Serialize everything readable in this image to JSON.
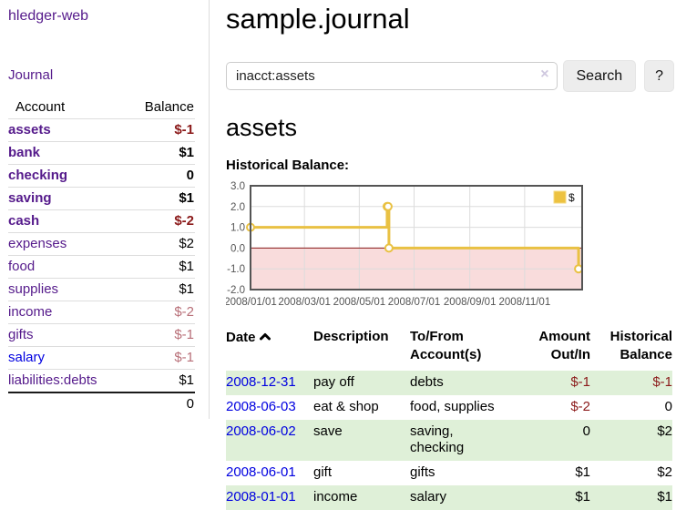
{
  "sidebar": {
    "app_title": "hledger-web",
    "nav": {
      "journal_label": "Journal"
    },
    "accounts_table": {
      "headers": {
        "account": "Account",
        "balance": "Balance"
      },
      "rows": [
        {
          "label": "assets",
          "indent": 1,
          "bold": true,
          "balance": "$-1",
          "balance_style": "neg",
          "link_color": "purple"
        },
        {
          "label": "bank",
          "indent": 2,
          "bold": true,
          "balance": "$1",
          "balance_style": "normal",
          "link_color": "purple"
        },
        {
          "label": "checking",
          "indent": 3,
          "bold": true,
          "balance": "0",
          "balance_style": "normal",
          "link_color": "purple"
        },
        {
          "label": "saving",
          "indent": 3,
          "bold": true,
          "balance": "$1",
          "balance_style": "normal",
          "link_color": "purple"
        },
        {
          "label": "cash",
          "indent": 2,
          "bold": true,
          "balance": "$-2",
          "balance_style": "neg",
          "link_color": "purple"
        },
        {
          "label": "expenses",
          "indent": 1,
          "bold": false,
          "balance": "$2",
          "balance_style": "normal",
          "link_color": "purple"
        },
        {
          "label": "food",
          "indent": 2,
          "bold": false,
          "balance": "$1",
          "balance_style": "normal",
          "link_color": "purple"
        },
        {
          "label": "supplies",
          "indent": 2,
          "bold": false,
          "balance": "$1",
          "balance_style": "normal",
          "link_color": "purple"
        },
        {
          "label": "income",
          "indent": 1,
          "bold": false,
          "balance": "$-2",
          "balance_style": "negmuted",
          "link_color": "purple"
        },
        {
          "label": "gifts",
          "indent": 2,
          "bold": false,
          "balance": "$-1",
          "balance_style": "negmuted",
          "link_color": "purple"
        },
        {
          "label": "salary",
          "indent": 2,
          "bold": false,
          "balance": "$-1",
          "balance_style": "negmuted",
          "link_color": "blue"
        },
        {
          "label": "liabilities:debts",
          "indent": 1,
          "bold": false,
          "balance": "$1",
          "balance_style": "normal",
          "link_color": "purple"
        }
      ],
      "total": "0"
    }
  },
  "main": {
    "title": "sample.journal",
    "search": {
      "query": "inacct:assets",
      "clear_icon": "×",
      "search_label": "Search",
      "help_label": "?"
    },
    "account_heading": "assets",
    "chart_heading": "Historical Balance:"
  },
  "chart_data": {
    "type": "line",
    "subtype": "step",
    "title": "Historical Balance",
    "series": [
      {
        "name": "$",
        "color": "#E9C143",
        "points": [
          [
            "2008-01-01",
            1
          ],
          [
            "2008-06-01",
            2
          ],
          [
            "2008-06-02",
            2
          ],
          [
            "2008-06-03",
            0
          ],
          [
            "2008-12-31",
            -1
          ]
        ]
      }
    ],
    "xlim": [
      "2008-01-01",
      "2009-01-04"
    ],
    "ylim": [
      -2,
      3
    ],
    "x_ticks": [
      {
        "value": "2008-01-01",
        "label": "2008/01/01"
      },
      {
        "value": "2008-03-01",
        "label": "2008/03/01"
      },
      {
        "value": "2008-05-01",
        "label": "2008/05/01"
      },
      {
        "value": "2008-07-01",
        "label": "2008/07/01"
      },
      {
        "value": "2008-09-01",
        "label": "2008/09/01"
      },
      {
        "value": "2008-11-01",
        "label": "2008/11/01"
      }
    ],
    "y_ticks": [
      {
        "value": 3,
        "label": "3.0"
      },
      {
        "value": 2,
        "label": "2.0"
      },
      {
        "value": 1,
        "label": "1.0"
      },
      {
        "value": 0,
        "label": "0.0"
      },
      {
        "value": -1,
        "label": "-1.0"
      },
      {
        "value": -2,
        "label": "-2.0"
      }
    ],
    "legend": {
      "label": "$",
      "position": "top-right"
    },
    "grid": true,
    "colors": {
      "line": "#E9C143",
      "legend_fill": "#EDC240",
      "legend_border": "#F3DA81",
      "negative_region": "#f9dcdc",
      "zero_line": "#8b1a1a",
      "grid_line": "#dcdcdc",
      "plot_border": "#545454",
      "tick_text": "#545454"
    }
  },
  "transactions": {
    "headers": {
      "date": "Date",
      "description": "Description",
      "accounts": "To/From\nAccount(s)",
      "amount": "Amount\nOut/In",
      "balance": "Historical\nBalance"
    },
    "sort_icon": "chevron-up",
    "rows": [
      {
        "date": "2008-12-31",
        "description": "pay off",
        "accounts_lines": [
          "debts"
        ],
        "amount": "$-1",
        "amount_negative": true,
        "balance": "$-1",
        "balance_negative": true,
        "highlight": true
      },
      {
        "date": "2008-06-03",
        "description": "eat & shop",
        "accounts_lines": [
          "food, supplies"
        ],
        "amount": "$-2",
        "amount_negative": true,
        "balance": "0",
        "balance_negative": false,
        "highlight": false
      },
      {
        "date": "2008-06-02",
        "description": "save",
        "accounts_lines": [
          "saving,",
          "checking"
        ],
        "amount": "0",
        "amount_negative": false,
        "balance": "$2",
        "balance_negative": false,
        "highlight": true
      },
      {
        "date": "2008-06-01",
        "description": "gift",
        "accounts_lines": [
          "gifts"
        ],
        "amount": "$1",
        "amount_negative": false,
        "balance": "$2",
        "balance_negative": false,
        "highlight": false
      },
      {
        "date": "2008-01-01",
        "description": "income",
        "accounts_lines": [
          "salary"
        ],
        "amount": "$1",
        "amount_negative": false,
        "balance": "$1",
        "balance_negative": false,
        "highlight": true
      }
    ]
  }
}
